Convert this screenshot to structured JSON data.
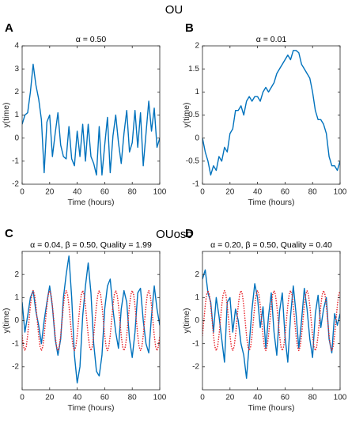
{
  "sections": [
    "OU",
    "OUosc"
  ],
  "chart_data": [
    {
      "type": "line",
      "panel": "A",
      "title": "α = 0.50",
      "xlabel": "Time (hours)",
      "ylabel": "y(time)",
      "xlim": [
        0,
        100
      ],
      "xticks": [
        0,
        20,
        40,
        60,
        80,
        100
      ],
      "ylim": [
        -2,
        4
      ],
      "yticks": [
        -2,
        -1,
        0,
        1,
        2,
        3,
        4
      ],
      "series": [
        {
          "color": "#0072bd",
          "style": "solid",
          "x": [
            0,
            2,
            4,
            6,
            8,
            10,
            12,
            14,
            16,
            18,
            20,
            22,
            24,
            26,
            28,
            30,
            32,
            34,
            36,
            38,
            40,
            42,
            44,
            46,
            48,
            50,
            52,
            54,
            56,
            58,
            60,
            62,
            64,
            66,
            68,
            70,
            72,
            74,
            76,
            78,
            80,
            82,
            84,
            86,
            88,
            90,
            92,
            94,
            96,
            98,
            100
          ],
          "values": [
            0.6,
            1.0,
            1.1,
            2.0,
            3.2,
            2.3,
            1.7,
            0.8,
            -1.5,
            0.7,
            1.0,
            -0.8,
            0.2,
            1.1,
            -0.3,
            -0.8,
            -0.9,
            0.5,
            -0.9,
            -1.2,
            0.3,
            -0.8,
            0.6,
            -1.0,
            0.6,
            -0.8,
            -1.1,
            -1.6,
            0.5,
            -1.6,
            -0.3,
            0.9,
            -1.5,
            0.1,
            1.0,
            -0.2,
            -1.1,
            0.2,
            1.2,
            -0.6,
            -0.2,
            1.2,
            -0.4,
            1.1,
            -1.2,
            0.2,
            1.6,
            0.3,
            1.3,
            -0.4,
            0.0
          ]
        }
      ]
    },
    {
      "type": "line",
      "panel": "B",
      "title": "α = 0.01",
      "xlabel": "Time (hours)",
      "ylabel": "y(time)",
      "xlim": [
        0,
        100
      ],
      "xticks": [
        0,
        20,
        40,
        60,
        80,
        100
      ],
      "ylim": [
        -1,
        2
      ],
      "yticks": [
        -1,
        -0.5,
        0,
        0.5,
        1,
        1.5,
        2
      ],
      "series": [
        {
          "color": "#0072bd",
          "style": "solid",
          "x": [
            0,
            2,
            4,
            6,
            8,
            10,
            12,
            14,
            16,
            18,
            20,
            22,
            24,
            26,
            28,
            30,
            32,
            34,
            36,
            38,
            40,
            42,
            44,
            46,
            48,
            50,
            52,
            54,
            56,
            58,
            60,
            62,
            64,
            66,
            68,
            70,
            72,
            74,
            76,
            78,
            80,
            82,
            84,
            86,
            88,
            90,
            92,
            94,
            96,
            98,
            100
          ],
          "values": [
            0.0,
            -0.3,
            -0.5,
            -0.8,
            -0.6,
            -0.7,
            -0.4,
            -0.5,
            -0.2,
            -0.3,
            0.1,
            0.2,
            0.6,
            0.6,
            0.7,
            0.5,
            0.8,
            0.9,
            0.8,
            0.9,
            0.9,
            0.8,
            1.0,
            1.1,
            1.0,
            1.1,
            1.2,
            1.4,
            1.5,
            1.6,
            1.7,
            1.8,
            1.7,
            1.9,
            1.9,
            1.85,
            1.6,
            1.5,
            1.4,
            1.3,
            1.0,
            0.6,
            0.4,
            0.4,
            0.3,
            0.1,
            -0.4,
            -0.6,
            -0.6,
            -0.7,
            -0.5
          ]
        }
      ]
    },
    {
      "type": "line",
      "panel": "C",
      "title": "α = 0.04, β = 0.50, Quality = 1.99",
      "xlabel": "Time (hours)",
      "ylabel": "y(time)",
      "xlim": [
        0,
        100
      ],
      "xticks": [
        0,
        20,
        40,
        60,
        80,
        100
      ],
      "ylim": [
        -3,
        3
      ],
      "yticks": [
        -2,
        -1,
        0,
        1,
        2
      ],
      "series": [
        {
          "color": "#0072bd",
          "style": "solid",
          "x": [
            0,
            2,
            4,
            6,
            8,
            10,
            12,
            14,
            16,
            18,
            20,
            22,
            24,
            26,
            28,
            30,
            32,
            34,
            36,
            38,
            40,
            42,
            44,
            46,
            48,
            50,
            52,
            54,
            56,
            58,
            60,
            62,
            64,
            66,
            68,
            70,
            72,
            74,
            76,
            78,
            80,
            82,
            84,
            86,
            88,
            90,
            92,
            94,
            96,
            98,
            100
          ],
          "values": [
            0.8,
            -0.5,
            0.2,
            1.0,
            1.3,
            0.4,
            -0.2,
            -1.0,
            0.0,
            0.8,
            1.5,
            0.6,
            -0.8,
            -1.5,
            -0.8,
            1.0,
            2.0,
            2.8,
            1.0,
            -1.5,
            -2.7,
            -2.0,
            0.2,
            1.5,
            2.5,
            1.2,
            -1.0,
            -2.2,
            -2.4,
            -1.5,
            0.5,
            1.5,
            1.8,
            0.5,
            -0.5,
            -1.2,
            0.5,
            1.3,
            0.8,
            -0.8,
            -1.6,
            -0.5,
            1.2,
            1.4,
            0.0,
            -1.0,
            -1.4,
            0.2,
            1.5,
            0.5,
            -0.2
          ]
        },
        {
          "color": "#e8252b",
          "style": "dotted",
          "x": [
            0,
            1,
            2,
            3,
            4,
            5,
            6,
            7,
            8,
            9,
            10,
            11,
            12,
            13,
            14,
            15,
            16,
            17,
            18,
            19,
            20,
            21,
            22,
            23,
            24,
            25,
            26,
            27,
            28,
            29,
            30,
            31,
            32,
            33,
            34,
            35,
            36,
            37,
            38,
            39,
            40,
            41,
            42,
            43,
            44,
            45,
            46,
            47,
            48,
            49,
            50,
            51,
            52,
            53,
            54,
            55,
            56,
            57,
            58,
            59,
            60,
            61,
            62,
            63,
            64,
            65,
            66,
            67,
            68,
            69,
            70,
            71,
            72,
            73,
            74,
            75,
            76,
            77,
            78,
            79,
            80,
            81,
            82,
            83,
            84,
            85,
            86,
            87,
            88,
            89,
            90,
            91,
            92,
            93,
            94,
            95,
            96,
            97,
            98,
            99,
            100
          ],
          "values": [
            -0.65,
            -1.13,
            -1.3,
            -1.13,
            -0.65,
            0,
            0.65,
            1.13,
            1.3,
            1.13,
            0.65,
            0,
            -0.65,
            -1.13,
            -1.3,
            -1.13,
            -0.65,
            0,
            0.65,
            1.13,
            1.3,
            1.13,
            0.65,
            0,
            -0.65,
            -1.13,
            -1.3,
            -1.13,
            -0.65,
            0,
            0.65,
            1.13,
            1.3,
            1.13,
            0.65,
            0,
            -0.65,
            -1.13,
            -1.3,
            -1.13,
            -0.65,
            0,
            0.65,
            1.13,
            1.3,
            1.13,
            0.65,
            0,
            -0.65,
            -1.13,
            -1.3,
            -1.13,
            -0.65,
            0,
            0.65,
            1.13,
            1.3,
            1.13,
            0.65,
            0,
            -0.65,
            -1.13,
            -1.3,
            -1.13,
            -0.65,
            0,
            0.65,
            1.13,
            1.3,
            1.13,
            0.65,
            0,
            -0.65,
            -1.13,
            -1.3,
            -1.13,
            -0.65,
            0,
            0.65,
            1.13,
            1.3,
            1.13,
            0.65,
            0,
            -0.65,
            -1.13,
            -1.3,
            -1.13,
            -0.65,
            0,
            0.65,
            1.13,
            1.3,
            1.13,
            0.65,
            0,
            -0.65,
            -1.13,
            -1.3,
            -1.13,
            -0.65
          ]
        }
      ]
    },
    {
      "type": "line",
      "panel": "D",
      "title": "α = 0.20, β = 0.50, Quality = 0.40",
      "xlabel": "Time (hours)",
      "ylabel": "y(time)",
      "xlim": [
        0,
        100
      ],
      "xticks": [
        0,
        20,
        40,
        60,
        80,
        100
      ],
      "ylim": [
        -3,
        3
      ],
      "yticks": [
        -2,
        -1,
        0,
        1,
        2
      ],
      "series": [
        {
          "color": "#0072bd",
          "style": "solid",
          "x": [
            0,
            2,
            4,
            6,
            8,
            10,
            12,
            14,
            16,
            18,
            20,
            22,
            24,
            26,
            28,
            30,
            32,
            34,
            36,
            38,
            40,
            42,
            44,
            46,
            48,
            50,
            52,
            54,
            56,
            58,
            60,
            62,
            64,
            66,
            68,
            70,
            72,
            74,
            76,
            78,
            80,
            82,
            84,
            86,
            88,
            90,
            92,
            94,
            96,
            98,
            100
          ],
          "values": [
            1.8,
            2.2,
            1.2,
            0.8,
            -0.5,
            1.0,
            0.2,
            -0.8,
            -1.8,
            0.8,
            1.0,
            -0.5,
            0.5,
            0.0,
            -1.0,
            -1.5,
            -2.5,
            -1.0,
            0.5,
            1.6,
            1.0,
            -0.3,
            0.6,
            -1.2,
            0.2,
            1.2,
            -0.5,
            -1.5,
            0.4,
            1.2,
            -0.7,
            -1.8,
            0.2,
            1.5,
            0.3,
            -1.2,
            0.0,
            1.4,
            0.5,
            -0.8,
            -1.6,
            0.3,
            1.1,
            -0.3,
            0.5,
            1.0,
            -0.8,
            -1.4,
            0.3,
            -0.2,
            0.3
          ]
        },
        {
          "color": "#e8252b",
          "style": "dotted",
          "x": [
            0,
            1,
            2,
            3,
            4,
            5,
            6,
            7,
            8,
            9,
            10,
            11,
            12,
            13,
            14,
            15,
            16,
            17,
            18,
            19,
            20,
            21,
            22,
            23,
            24,
            25,
            26,
            27,
            28,
            29,
            30,
            31,
            32,
            33,
            34,
            35,
            36,
            37,
            38,
            39,
            40,
            41,
            42,
            43,
            44,
            45,
            46,
            47,
            48,
            49,
            50,
            51,
            52,
            53,
            54,
            55,
            56,
            57,
            58,
            59,
            60,
            61,
            62,
            63,
            64,
            65,
            66,
            67,
            68,
            69,
            70,
            71,
            72,
            73,
            74,
            75,
            76,
            77,
            78,
            79,
            80,
            81,
            82,
            83,
            84,
            85,
            86,
            87,
            88,
            89,
            90,
            91,
            92,
            93,
            94,
            95,
            96,
            97,
            98,
            99,
            100
          ],
          "values": [
            -0.65,
            0,
            0.65,
            1.13,
            1.3,
            1.13,
            0.65,
            0,
            -0.65,
            -1.13,
            -1.3,
            -1.13,
            -0.65,
            0,
            0.65,
            1.13,
            1.3,
            1.13,
            0.65,
            0,
            -0.65,
            -1.13,
            -1.3,
            -1.13,
            -0.65,
            0,
            0.65,
            1.13,
            1.3,
            1.13,
            0.65,
            0,
            -0.65,
            -1.13,
            -1.3,
            -1.13,
            -0.65,
            0,
            0.65,
            1.13,
            1.3,
            1.13,
            0.65,
            0,
            -0.65,
            -1.13,
            -1.3,
            -1.13,
            -0.65,
            0,
            0.65,
            1.13,
            1.3,
            1.13,
            0.65,
            0,
            -0.65,
            -1.13,
            -1.3,
            -1.13,
            -0.65,
            0,
            0.65,
            1.13,
            1.3,
            1.13,
            0.65,
            0,
            -0.65,
            -1.13,
            -1.3,
            -1.13,
            -0.65,
            0,
            0.65,
            1.13,
            1.3,
            1.13,
            0.65,
            0,
            -0.65,
            -1.13,
            -1.3,
            -1.13,
            -0.65,
            0,
            0.65,
            1.13,
            1.3,
            1.13,
            0.65,
            0,
            -0.65,
            -1.13,
            -1.3,
            -1.13,
            -0.65,
            0,
            0.65,
            1.13,
            1.3
          ]
        }
      ]
    }
  ]
}
